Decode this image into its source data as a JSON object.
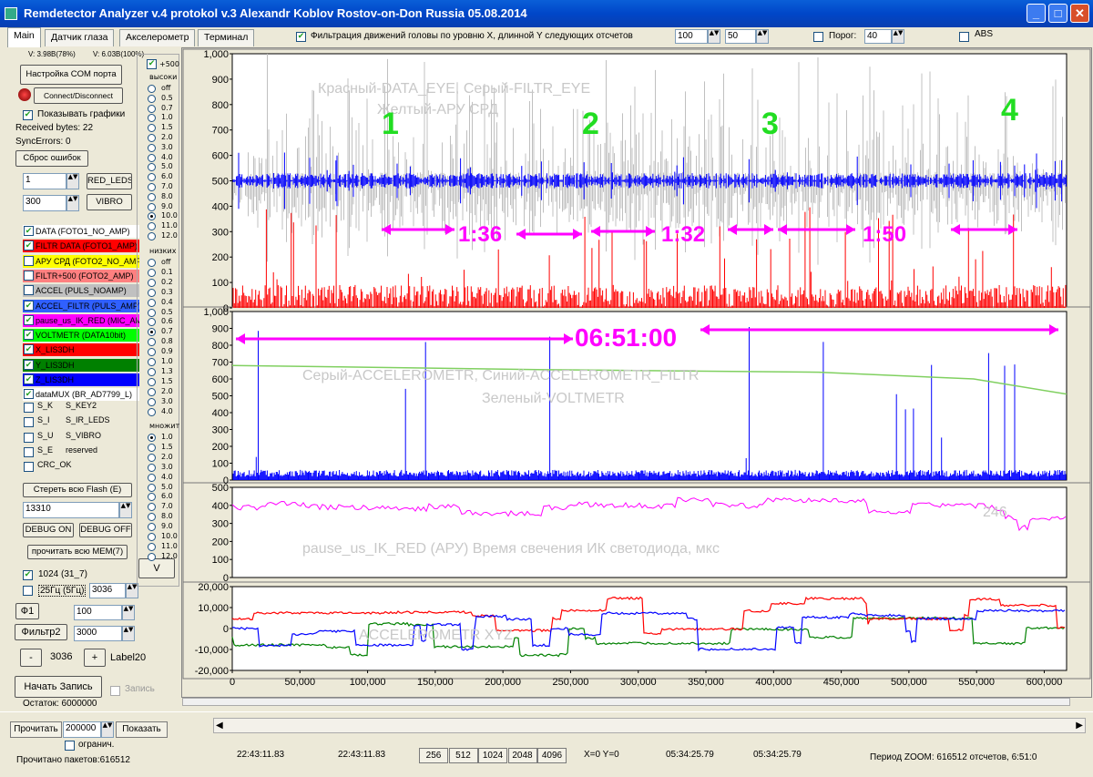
{
  "window": {
    "title": "Remdetector Analyzer v.4 protokol v.3 Alexandr Koblov Rostov-on-Don Russia 05.08.2014"
  },
  "tabs": [
    "Main",
    "Датчик глаза",
    "Акселерометр",
    "Терминал"
  ],
  "header": {
    "filter_label": "Фильтрация движений головы по уровню X, длинной Y следующих отсчетов",
    "x_value": "100",
    "y_value": "50",
    "threshold_label": "Порог:",
    "threshold_value": "40",
    "abs_label": "ABS"
  },
  "left": {
    "v1": "V: 3.98B(78%)",
    "v2": "V: 6.03B(100%)",
    "com_button": "Настройка COM порта",
    "connect_button": "Connect/Disconnect",
    "show_graphs": "Показывать графики",
    "received": "Received bytes: 22",
    "sync_errors": "SyncErrors: 0",
    "reset_errors": "Сброс ошибок",
    "spin1": "1",
    "red_leds": "RED_LEDS",
    "spin2": "300",
    "vibro": "VIBRO",
    "channels": [
      {
        "label": "DATA (FOTO1_NO_AMP)",
        "bg": "#ffffff",
        "checked": true
      },
      {
        "label": "FILTR DATA (FOTO1_AMP)",
        "bg": "#ff0000",
        "checked": true
      },
      {
        "label": "АРУ СРД (FOTO2_NO_AMP)",
        "bg": "#ffff00",
        "checked": false
      },
      {
        "label": "FILTR+500 (FOTO2_AMP)",
        "bg": "#ff8080",
        "checked": false
      },
      {
        "label": "ACCEL (PULS_NOAMP)",
        "bg": "#c0c0c0",
        "checked": false
      },
      {
        "label": "ACCEL_FILTR (PULS_AMP)",
        "bg": "#3060ff",
        "checked": true
      },
      {
        "label": "pause_us_IK_RED (MIC_AMP)",
        "bg": "#ff00ff",
        "checked": true
      },
      {
        "label": "VOLTMETR (DATA10bit)",
        "bg": "#00ff00",
        "checked": true
      },
      {
        "label": "X_LIS3DH",
        "bg": "#ff0000",
        "checked": true
      },
      {
        "label": "Y_LIS3DH",
        "bg": "#008000",
        "checked": true
      },
      {
        "label": "Z_LIS3DH",
        "bg": "#0000ff",
        "checked": true
      },
      {
        "label": "dataMUX (BR_AD7799_L)",
        "bg": "#ffffff",
        "checked": true
      }
    ],
    "extras": [
      {
        "a": "S_K",
        "b": "S_KEY2"
      },
      {
        "a": "S_I",
        "b": "S_IR_LEDS"
      },
      {
        "a": "S_U",
        "b": "S_VIBRO"
      },
      {
        "a": "S_E",
        "b": "reserved"
      },
      {
        "a": "",
        "b": "CRC_OK"
      }
    ],
    "erase_flash": "Стереть всю Flash (E)",
    "flash_value": "13310",
    "debug_on": "DEBUG ON",
    "debug_off": "DEBUG OFF",
    "read_mem": "прочитать всю MEM(7)",
    "cb1024": "1024 (31_7)",
    "cb25": "25Гц (5Гц)",
    "val3036": "3036",
    "f1": "Ф1",
    "f1_value": "100",
    "filter2": "Фильтр2",
    "filter2_value": "3000",
    "minus": "-",
    "mid_value": "3036",
    "plus": "+",
    "label20": "Label20",
    "start_rec": "Начать Запись",
    "rec_label": "Запись",
    "remain": "Остаток: 6000000",
    "high_title": "высоки",
    "high_opts": [
      "off",
      "0.5",
      "0.7",
      "1.0",
      "1.5",
      "2.0",
      "3.0",
      "4.0",
      "5.0",
      "6.0",
      "7.0",
      "8.0",
      "9.0",
      "10.0",
      "11.0",
      "12.0"
    ],
    "low_title": "низких",
    "low_opts": [
      "off",
      "0.1",
      "0.2",
      "0.3",
      "0.4",
      "0.5",
      "0.6",
      "0.7",
      "0.8",
      "0.9",
      "1.0",
      "1.3",
      "1.5",
      "2.0",
      "3.0",
      "4.0"
    ],
    "mult_title": "множит",
    "mult_opts": [
      "1.0",
      "1.5",
      "2.0",
      "3.0",
      "4.0",
      "5.0",
      "6.0",
      "7.0",
      "8.0",
      "9.0",
      "10.0",
      "11.0",
      "12.0"
    ],
    "plus500": "+500",
    "v_button": "V"
  },
  "charts": {
    "p1": {
      "ticks": [
        "1,000",
        "900",
        "800",
        "700",
        "600",
        "500",
        "400",
        "300",
        "200",
        "100",
        "0"
      ],
      "wm1": "Красный-DATA_EYE, Серый-FILTR_EYE",
      "wm2": "Желтый-АРУ СРД",
      "marks": [
        "1",
        "2",
        "3",
        "4"
      ],
      "intervals": [
        "1:36",
        "1:32",
        "1:50"
      ]
    },
    "p2": {
      "ticks": [
        "1,000",
        "900",
        "800",
        "700",
        "600",
        "500",
        "400",
        "300",
        "200",
        "100",
        "0"
      ],
      "wm1": "Серый-ACCELEROMETR,  Синий-ACCELEROMETR_FILTR",
      "wm2": "Зеленый-VOLTMETR",
      "annotation": "06:51:00"
    },
    "p3": {
      "ticks": [
        "500",
        "400",
        "300",
        "200",
        "100",
        "0"
      ],
      "wm": "pause_us_IK_RED (АРУ) Время свечения ИК светодиода, мкс",
      "value": "246"
    },
    "p4": {
      "ticks": [
        "20,000",
        "10,000",
        "0",
        "-10,000",
        "-20,000"
      ],
      "wm": "ACCELEROMETR XYZ"
    },
    "xticks": [
      "0",
      "50,000",
      "100,000",
      "150,000",
      "200,000",
      "250,000",
      "300,000",
      "350,000",
      "400,000",
      "450,000",
      "500,000",
      "550,000",
      "600,000"
    ]
  },
  "footer": {
    "read": "Прочитать",
    "read_value": "200000",
    "limit": "огранич.",
    "show": "Показать",
    "packets": "Прочитано пакетов:616512",
    "t1": "22:43:11.83",
    "t2": "22:43:11.83",
    "zoom": [
      "256",
      "512",
      "1024",
      "2048",
      "4096"
    ],
    "xy": "X=0 Y=0",
    "t3": "05:34:25.79",
    "t4": "05:34:25.79",
    "period": "Период ZOOM: 616512 отсчетов, 6:51:0"
  },
  "colors": {
    "red": "#ff0000",
    "blue": "#0000ff",
    "gray": "#c0c0c0",
    "green": "#008000",
    "magenta": "#ff00ff",
    "lime": "#00ff00",
    "annot_green": "#22dd22",
    "annot_mag": "#ff00ff"
  }
}
